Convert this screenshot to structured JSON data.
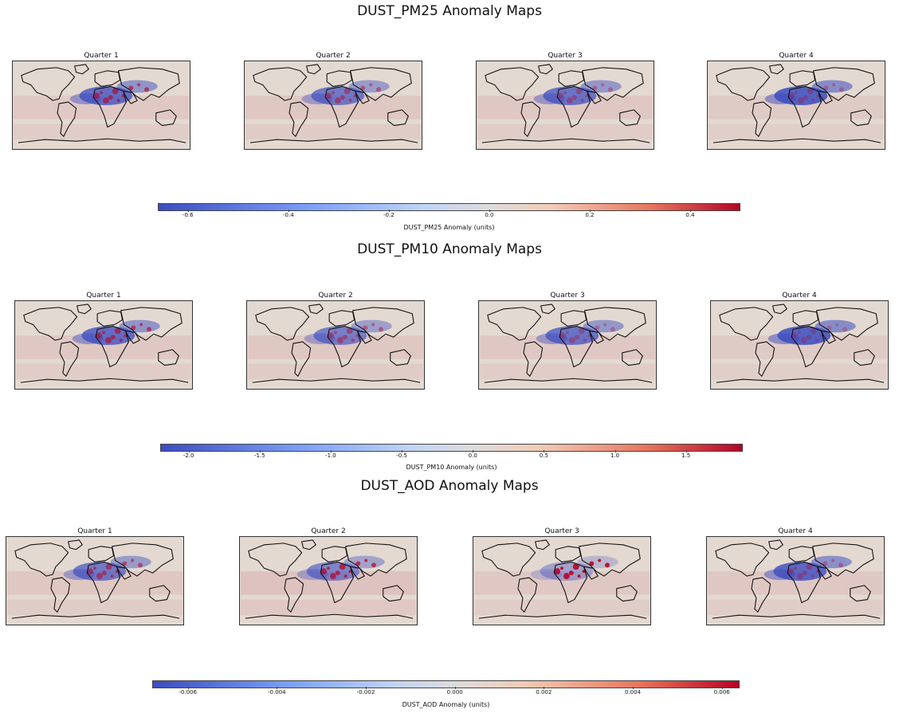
{
  "colors": {
    "negative": "#3b4cc0",
    "neutral": "#dddcdc",
    "positive": "#b40426",
    "land_bg": "#e3d9d1"
  },
  "charts": [
    {
      "title": "DUST_PM25 Anomaly Maps",
      "panels": [
        {
          "title": "Quarter 1",
          "neg_intensity": 0.9,
          "pos_intensity": 0.7,
          "ocean_tint": 0.25,
          "label_text": ""
        },
        {
          "title": "Quarter 2",
          "neg_intensity": 0.8,
          "pos_intensity": 0.5,
          "ocean_tint": 0.35,
          "label_text": ""
        },
        {
          "title": "Quarter 3",
          "neg_intensity": 0.85,
          "pos_intensity": 0.4,
          "ocean_tint": 0.3,
          "label_text": ""
        },
        {
          "title": "Quarter 4",
          "neg_intensity": 1.0,
          "pos_intensity": 0.35,
          "ocean_tint": 0.2,
          "label_text": ""
        }
      ],
      "colorbar": {
        "vmin": -0.66,
        "vmax": 0.5,
        "ticks": [
          "-0.6",
          "-0.4",
          "-0.2",
          "0.0",
          "0.2",
          "0.4"
        ],
        "tick_values": [
          -0.6,
          -0.4,
          -0.2,
          0.0,
          0.2,
          0.4
        ],
        "label": "DUST_PM25 Anomaly (units)"
      }
    },
    {
      "title": "DUST_PM10 Anomaly Maps",
      "panels": [
        {
          "title": "Quarter 1",
          "neg_intensity": 0.9,
          "pos_intensity": 0.7,
          "ocean_tint": 0.3
        },
        {
          "title": "Quarter 2",
          "neg_intensity": 0.75,
          "pos_intensity": 0.5,
          "ocean_tint": 0.35
        },
        {
          "title": "Quarter 3",
          "neg_intensity": 0.85,
          "pos_intensity": 0.35,
          "ocean_tint": 0.3
        },
        {
          "title": "Quarter 4",
          "neg_intensity": 1.0,
          "pos_intensity": 0.3,
          "ocean_tint": 0.2
        }
      ],
      "colorbar": {
        "vmin": -2.2,
        "vmax": 1.9,
        "ticks": [
          "-2.0",
          "-1.5",
          "-1.0",
          "-0.5",
          "0.0",
          "0.5",
          "1.0",
          "1.5"
        ],
        "tick_values": [
          -2.0,
          -1.5,
          -1.0,
          -0.5,
          0.0,
          0.5,
          1.0,
          1.5
        ],
        "label": "DUST_PM10 Anomaly (units)"
      }
    },
    {
      "title": "DUST_AOD Anomaly Maps",
      "panels": [
        {
          "title": "Quarter 1",
          "neg_intensity": 0.8,
          "pos_intensity": 0.6,
          "ocean_tint": 0.35
        },
        {
          "title": "Quarter 2",
          "neg_intensity": 0.7,
          "pos_intensity": 0.8,
          "ocean_tint": 0.5
        },
        {
          "title": "Quarter 3",
          "neg_intensity": 0.45,
          "pos_intensity": 1.0,
          "ocean_tint": 0.3
        },
        {
          "title": "Quarter 4",
          "neg_intensity": 0.95,
          "pos_intensity": 0.4,
          "ocean_tint": 0.3
        }
      ],
      "colorbar": {
        "vmin": -0.0068,
        "vmax": 0.0064,
        "ticks": [
          "-0.006",
          "-0.004",
          "-0.002",
          "0.000",
          "0.002",
          "0.004",
          "0.006"
        ],
        "tick_values": [
          -0.006,
          -0.004,
          -0.002,
          0.0,
          0.002,
          0.004,
          0.006
        ],
        "label": "DUST_AOD Anomaly (units)"
      }
    }
  ],
  "chart_data": [
    {
      "type": "heatmap",
      "title": "DUST_PM25 Anomaly Maps",
      "subplots": [
        "Quarter 1",
        "Quarter 2",
        "Quarter 3",
        "Quarter 4"
      ],
      "colormap": "coolwarm",
      "colorbar_range": [
        -0.66,
        0.5
      ],
      "colorbar_ticks": [
        -0.6,
        -0.4,
        -0.2,
        0.0,
        0.2,
        0.4
      ],
      "colorbar_label": "DUST_PM25 Anomaly (units)"
    },
    {
      "type": "heatmap",
      "title": "DUST_PM10 Anomaly Maps",
      "subplots": [
        "Quarter 1",
        "Quarter 2",
        "Quarter 3",
        "Quarter 4"
      ],
      "colormap": "coolwarm",
      "colorbar_range": [
        -2.2,
        1.9
      ],
      "colorbar_ticks": [
        -2.0,
        -1.5,
        -1.0,
        -0.5,
        0.0,
        0.5,
        1.0,
        1.5
      ],
      "colorbar_label": "DUST_PM10 Anomaly (units)"
    },
    {
      "type": "heatmap",
      "title": "DUST_AOD Anomaly Maps",
      "subplots": [
        "Quarter 1",
        "Quarter 2",
        "Quarter 3",
        "Quarter 4"
      ],
      "colormap": "coolwarm",
      "colorbar_range": [
        -0.0068,
        0.0064
      ],
      "colorbar_ticks": [
        -0.006,
        -0.004,
        -0.002,
        0.0,
        0.002,
        0.004,
        0.006
      ],
      "colorbar_label": "DUST_AOD Anomaly (units)"
    }
  ]
}
